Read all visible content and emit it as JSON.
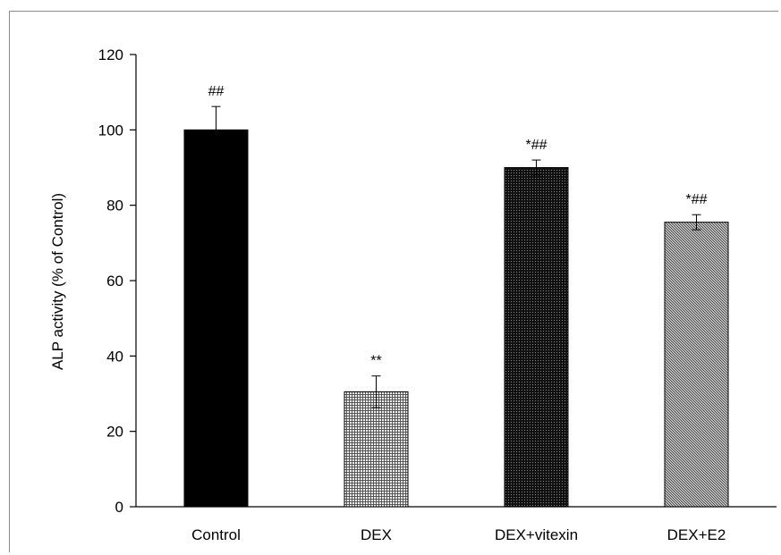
{
  "chart_data": {
    "type": "bar",
    "categories": [
      "Control",
      "DEX",
      "DEX+vitexin",
      "DEX+E2"
    ],
    "values": [
      100,
      30.5,
      90,
      75.5
    ],
    "errors": [
      6.2,
      4.2,
      2.0,
      2.0
    ],
    "annotations": [
      "##",
      "**",
      "*##",
      "*##"
    ],
    "fill_patterns": [
      "solid-black",
      "light-grid",
      "dark-dots",
      "gray-hatch"
    ],
    "title": "",
    "xlabel": "",
    "ylabel": "ALP activity (% of Control)",
    "ylim": [
      0,
      120
    ],
    "yticks": [
      0,
      20,
      40,
      60,
      80,
      100,
      120
    ],
    "grid": false,
    "legend": "none"
  }
}
